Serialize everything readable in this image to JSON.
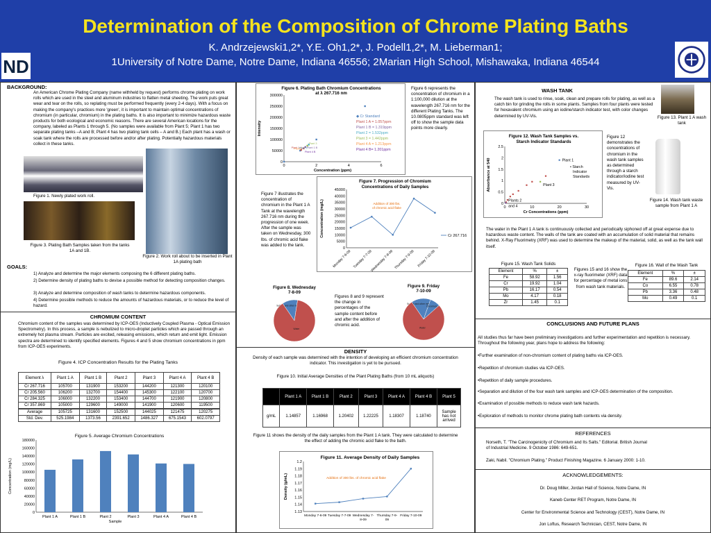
{
  "header": {
    "title": "Determination of the Composition of Chrome Plating Baths",
    "authors": "K. Andrzejewski1,2*, Y.E. Oh1,2*, J. Podell1,2*, M. Lieberman1;",
    "affiliations": "1University of Notre Dame, Notre Dame, Indiana 46556; 2Marian High School, Mishawaka, Indiana 46544"
  },
  "background": {
    "heading": "BACKGROUND:",
    "text": "An American Chrome Plating Company (name withheld by request) performs chrome plating on work rolls which are used in the steel and aluminum industries to flatten metal sheeting. The work puts great wear and tear on the rolls, so replating must be performed frequently (every 2-4 days). With a focus on making the company's practices more 'green', it is important to maintain optimal concentrations of chromium (in particular, chromium) in the plating baths. It is also important to minimize hazardous waste products for both ecological and economic reasons. There are several American locations for the company, labeled as Plants 1 through 5. (No samples were available from Plant 5; Plant 1 has two separate plating tanks –A and B; Plant 4 has two plating tank cells – A and B.) Each plant has a wash or soak tank where the rolls are processed before and/or after plating. Potentially hazardous materials collect in these tanks.",
    "fig1": "Figure 1. Newly plated work roll.",
    "fig2": "Figure 2. Work roll about to be inserted in Plant 1A plating bath",
    "fig3": "Figure 3. Plating Bath Samples taken from the tanks 1A and 1B."
  },
  "goals": {
    "heading": "GOALS:",
    "items": [
      "1) Analyze and determine the major elements composing the 6 different plating baths.",
      "2) Determine density of plating baths to devise a possible method for detecting composition changes.",
      "3) Analyze and determine composition of wash tanks to determine hazardous components.",
      "4) Determine possible methods to reduce the amounts of hazardous materials, or to reduce the level of hazard."
    ]
  },
  "chromium": {
    "heading": "CHROMIUM CONTENT",
    "text": "Chromium content of the samples was determined by ICP-OES (Inductively Coupled Plasma - Optical Emission Spectrometry). In this process, a sample is nebulized to micro-droplet particles which are passed through an extremely hot plasma stream. Particles are excited, releasing emissions, which return and emit light. Emission spectra are determined to identify specified elements. Figures 4 and 5 show chromium concentrations in ppm from ICP-OES experiments.",
    "fig4_title": "Figure 4. ICP Concentration Results for the Plating Tanks",
    "table_head": [
      "Element λ",
      "Plant 1 A",
      "Plant 1 B",
      "Plant 2",
      "Plant 3",
      "Plant 4 A",
      "Plant 4 B"
    ],
    "table_rows": [
      [
        "Cr 267.716",
        "105700",
        "131900",
        "153200",
        "144200",
        "121300",
        "120100"
      ],
      [
        "Cr 205.560",
        "106200",
        "132700",
        "154400",
        "145300",
        "122100",
        "120700"
      ],
      [
        "Cr 284.325",
        "106000",
        "132200",
        "153400",
        "144700",
        "121900",
        "120800"
      ],
      [
        "Cr 357.869",
        "105000",
        "129600",
        "149000",
        "141900",
        "120600",
        "119500"
      ]
    ],
    "table_stats": [
      [
        "Average",
        "105725",
        "131600",
        "152500",
        "144025",
        "121475",
        "120275"
      ],
      [
        "Std. Dev.",
        "525.1984",
        "1373.56",
        "2391.652",
        "1486.327",
        "675.1543",
        "602.0797"
      ]
    ]
  },
  "fig5": {
    "chart_data": {
      "type": "bar",
      "title": "Figure 5. Average Chromium Concentrations",
      "categories": [
        "Plant 1 A",
        "Plant 1 B",
        "Plant 2",
        "Plant 3",
        "Plant 4 A",
        "Plant 4 B"
      ],
      "values": [
        105725,
        131600,
        152500,
        144025,
        121475,
        120275
      ],
      "xlabel": "Sample",
      "ylabel": "Concentration (mg/L)",
      "ylim": [
        0,
        180000
      ],
      "yticks": [
        "0",
        "20000",
        "40000",
        "60000",
        "80000",
        "100000",
        "120000",
        "140000",
        "160000",
        "180000"
      ],
      "color": "#4f81bd"
    }
  },
  "fig6": {
    "chart_data": {
      "type": "scatter",
      "title": "Figure 6. Plating Bath Chromium Concentrations at λ 267.716 nm",
      "xlabel": "Concentration (ppm)",
      "ylabel": "Intensity",
      "xlim": [
        0,
        6
      ],
      "ylim": [
        0,
        300000
      ],
      "xticks": [
        "0",
        "2",
        "4",
        "6"
      ],
      "yticks": [
        "0",
        "50000",
        "100000",
        "150000",
        "200000",
        "250000",
        "300000"
      ],
      "series": [
        {
          "name": "Cr Standard",
          "color": "#4f81bd",
          "x": [
            0,
            1,
            2,
            5
          ],
          "y": [
            0,
            50000,
            100000,
            250000
          ]
        },
        {
          "name": "Plant 1 A = 1.057ppm",
          "color": "#c0504d",
          "x": [
            1.057
          ],
          "y": [
            53000
          ]
        },
        {
          "name": "Plant 1 B = 1.319ppm",
          "color": "#8064a2",
          "x": [
            1.319
          ],
          "y": [
            66000
          ]
        },
        {
          "name": "Plant 2 = 1.532ppm",
          "color": "#4bacc6",
          "x": [
            1.532
          ],
          "y": [
            77000
          ]
        },
        {
          "name": "Plant 3 = 1.442ppm",
          "color": "#9bbb59",
          "x": [
            1.442
          ],
          "y": [
            72000
          ]
        },
        {
          "name": "Plant 4 A = 1.213ppm",
          "color": "#f79646",
          "x": [
            1.213
          ],
          "y": [
            61000
          ]
        },
        {
          "name": "Plant 4 B= 1.201ppm",
          "color": "#7030a0",
          "x": [
            1.201
          ],
          "y": [
            60000
          ]
        }
      ],
      "point_labels": [
        "Plant 1 A",
        "Plant 1 B",
        "Plant 2",
        "Plant 3",
        "Plant 4 A",
        "Plant 4 B"
      ]
    },
    "caption": "Figure 6 represents the concentration of chromium in a 1:100,000 dilution at the wavelength 267.716 nm for the different Plating Tanks. The 10.0805ppm standard was left off to show the sample data points more clearly."
  },
  "fig7": {
    "chart_data": {
      "type": "line",
      "title": "Figure 7. Progression of Chromium Concentrations of Daily Samples",
      "categories": [
        "Monday 7-6-09",
        "Tuesday 7-7-09",
        "Wednesday 7-8-09",
        "Thursday 7-9-09",
        "Friday 7-10-09"
      ],
      "series": [
        {
          "name": "Cr 267.716",
          "values": [
            15500,
            24000,
            10000,
            38000,
            27000
          ]
        }
      ],
      "ylabel": "Concentration (mg/L)",
      "ylim": [
        0,
        45000
      ],
      "yticks": [
        "0",
        "5000",
        "10000",
        "15000",
        "20000",
        "25000",
        "30000",
        "35000",
        "40000",
        "45000"
      ],
      "annotation": "Addition of 300 lbs. of chromic acid flake",
      "color": "#4f81bd"
    },
    "caption": "Figure 7 illustrates the concentration of chromium in the Plant 1 A Tank at the wavelength 267.716 nm during the progression of one week. After the sample was taken on Wednesday, 300 lbs. of chromic acid flake was added to the tank."
  },
  "fig8": {
    "chart_data": {
      "type": "pie",
      "title": "Figure 8. Wednesday 7-8-09",
      "labels": [
        "Sulfate and other metal ions",
        "Water"
      ],
      "values": [
        12,
        88
      ],
      "colors": [
        "#4f81bd",
        "#c0504d"
      ]
    }
  },
  "fig9": {
    "chart_data": {
      "type": "pie",
      "title": "Figure 9. Friday 7-10-09",
      "labels": [
        "Sulfate and other metal ions",
        "Chromium",
        "Water"
      ],
      "values": [
        15,
        8,
        77
      ],
      "colors": [
        "#4f81bd",
        "#4f81bd",
        "#c0504d"
      ]
    },
    "caption": "Figures 8 and 9 represent the change in percentages of the sample content before and after the addition of chromic acid."
  },
  "density": {
    "heading": "DENSITY",
    "text": "Density of each sample was determined with the intention of developing an efficient chromium concentration indicator. This investigation is yet to be pursued.",
    "fig10_title": "Figure 10. Initial Average Densities of the Plant Plating Baths (from 10 mL aliquots)",
    "table_head": [
      "",
      "Plant 1 A",
      "Plant 1 B",
      "Plant 2",
      "Plant 3",
      "Plant 4 A",
      "Plant 4 B",
      "Plant 5"
    ],
    "table_row": [
      "g/mL",
      "1.14857",
      "1.16968",
      "1.20402",
      "1.22225",
      "1.18307",
      "1.18740",
      "Sample has not arrived"
    ],
    "fig11_caption": "Figure 11 shows the density of the daily samples from the Plant 1 A tank. They were calculated to determine the effect of adding the chromic acid flake to the bath."
  },
  "fig11": {
    "chart_data": {
      "type": "line",
      "title": "Figure 11. Average Density of Daily Samples",
      "categories": [
        "Monday 7-6-09",
        "Tuesday 7-7-09",
        "Wednesday 7-8-09",
        "Thursday 7-9-09",
        "Friday 7-10-09"
      ],
      "series": [
        {
          "name": "Density",
          "values": [
            1.141,
            1.143,
            1.148,
            1.151,
            1.19
          ]
        }
      ],
      "ylabel": "Density (g/mL)",
      "ylim": [
        1.13,
        1.2
      ],
      "yticks": [
        "1.13",
        "1.14",
        "1.15",
        "1.16",
        "1.17",
        "1.18",
        "1.19",
        "1.2"
      ],
      "annotation": "Addition of 300 lbs. of chromic acid flake",
      "color": "#4f81bd"
    }
  },
  "wash": {
    "heading": "WASH TANK",
    "text": "The wash tank is used to rinse, soak, clean and prepare rolls for plating, as well as a catch bin for grinding the rolls in some plants. Samples from four plants were tested for hexavalent chromium using an iodine/starch indicator test, with color changes determined by UV-Vis.",
    "fig13": "Figure 13. Plant 1 A wash tank",
    "fig14": "Figure 14. Wash tank waste sample from Plant 1 A",
    "fig12_caption": "Figure 12 demonstrates the concentrations of chromium in the wash tank samples as determined through a starch indicator/iodine test measured by UV-Vis.",
    "para2": "The water in the Plant 1 A tank is continuously collected and periodically siphoned off at great expense due to hazardous waste content. The walls of the tank are coated with an accumulation of solid material that remains behind. X-Ray Fluorimetry (XRF) was used to determine the makeup of the material, solid, as well as the tank wall itself.",
    "fig15_title": "Figure 15. Wash Tank Solids",
    "fig15_head": [
      "Element",
      "%",
      "±"
    ],
    "fig15_rows": [
      [
        "Fe",
        "58.92",
        "1.56"
      ],
      [
        "Cr",
        "19.92",
        "1.04"
      ],
      [
        "Pb",
        "16.17",
        "0.54"
      ],
      [
        "Mo",
        "4.17",
        "0.18"
      ],
      [
        "Zr",
        "1.45",
        "0.1"
      ]
    ],
    "fig1516_caption": "Figures 15 and 16 show the x-ray fluorimeter (XRF) data for percentage of metal ions from wash tank materials.",
    "fig16_title": "Figure 16. Wall of the Wash Tank",
    "fig16_head": [
      "Element",
      "%",
      "±"
    ],
    "fig16_rows": [
      [
        "Fe",
        "89.6",
        "2.14"
      ],
      [
        "Co",
        "6.55",
        "0.78"
      ],
      [
        "Pb",
        "3.36",
        "0.48"
      ],
      [
        "Mo",
        "0.49",
        "0.1"
      ]
    ]
  },
  "fig12": {
    "chart_data": {
      "type": "scatter",
      "title": "Figure 12. Wash Tank Samples vs. Starch Indicator Standards",
      "xlabel": "Cr Concentrations (ppm)",
      "ylabel": "Absorbance at 540",
      "xlim": [
        0,
        30
      ],
      "ylim": [
        0,
        2.5
      ],
      "xticks": [
        "0",
        "10",
        "20",
        "30"
      ],
      "yticks": [
        "0",
        "0.5",
        "1",
        "1.5",
        "2",
        "2.5"
      ],
      "series": [
        {
          "name": "Starch Indicator Standards",
          "color": "#c0504d",
          "x": [
            0.5,
            1,
            2,
            3,
            5,
            8,
            10,
            15
          ],
          "y": [
            0.05,
            0.15,
            0.3,
            0.4,
            0.55,
            0.8,
            0.95,
            1.2
          ]
        },
        {
          "name": "Plant 1",
          "color": "#4f81bd",
          "x": [
            20
          ],
          "y": [
            1.9
          ]
        },
        {
          "name": "Plant 3",
          "color": "#9bbb59",
          "x": [
            13
          ],
          "y": [
            0.95
          ]
        },
        {
          "name": "Plants 2 and 4",
          "color": "#8064a2",
          "x": [
            0.3
          ],
          "y": [
            0.02
          ]
        }
      ],
      "point_labels": [
        "Plant 1",
        "Plant 3",
        "Plants 2 and 4"
      ]
    }
  },
  "conclusions": {
    "heading": "CONCLUSIONS AND FUTURE PLANS",
    "intro": "All studies thus far have been preliminary investigations and further experimentation and repetition is necessary. Throughout the following year, plans hope to address the following:",
    "items": [
      "•Further examination of non-chromium content of plating baths via ICP-OES.",
      "•Repetition of chromium studies via ICP-OES.",
      "•Repetition of daily sample procedures.",
      "•Separation and dilution of the four wash tank samples and ICP-OES determination of the composition.",
      "•Examination of possible methods to reduce wash tank hazards.",
      "•Exploration of methods to monitor chrome plating bath contents via density."
    ]
  },
  "references": {
    "heading": "REFERENCES",
    "items": [
      "Norseth, T. \"The Carcinogenicity of Chromium and Its Salts.\" Editorial. British Journal of Industrial Medicine. 9 October 1986: 649-651.",
      "Zaki, Nabil. \"Chromium Plating.\" Product Finishing Magazine. 6 January 2000: 1-10."
    ]
  },
  "ack": {
    "heading": "ACKNOWLEDGEMENTS:",
    "items": [
      "Dr. Doug Miller, Jordan Hall of Science, Notre Dame, IN",
      "Kaneb Center RET Program, Notre Dame, IN",
      "Center for Environmental Science and Technology (CEST), Notre Dame, IN",
      "Jon Loftus, Research Technician, CEST, Notre Dame, IN"
    ]
  }
}
